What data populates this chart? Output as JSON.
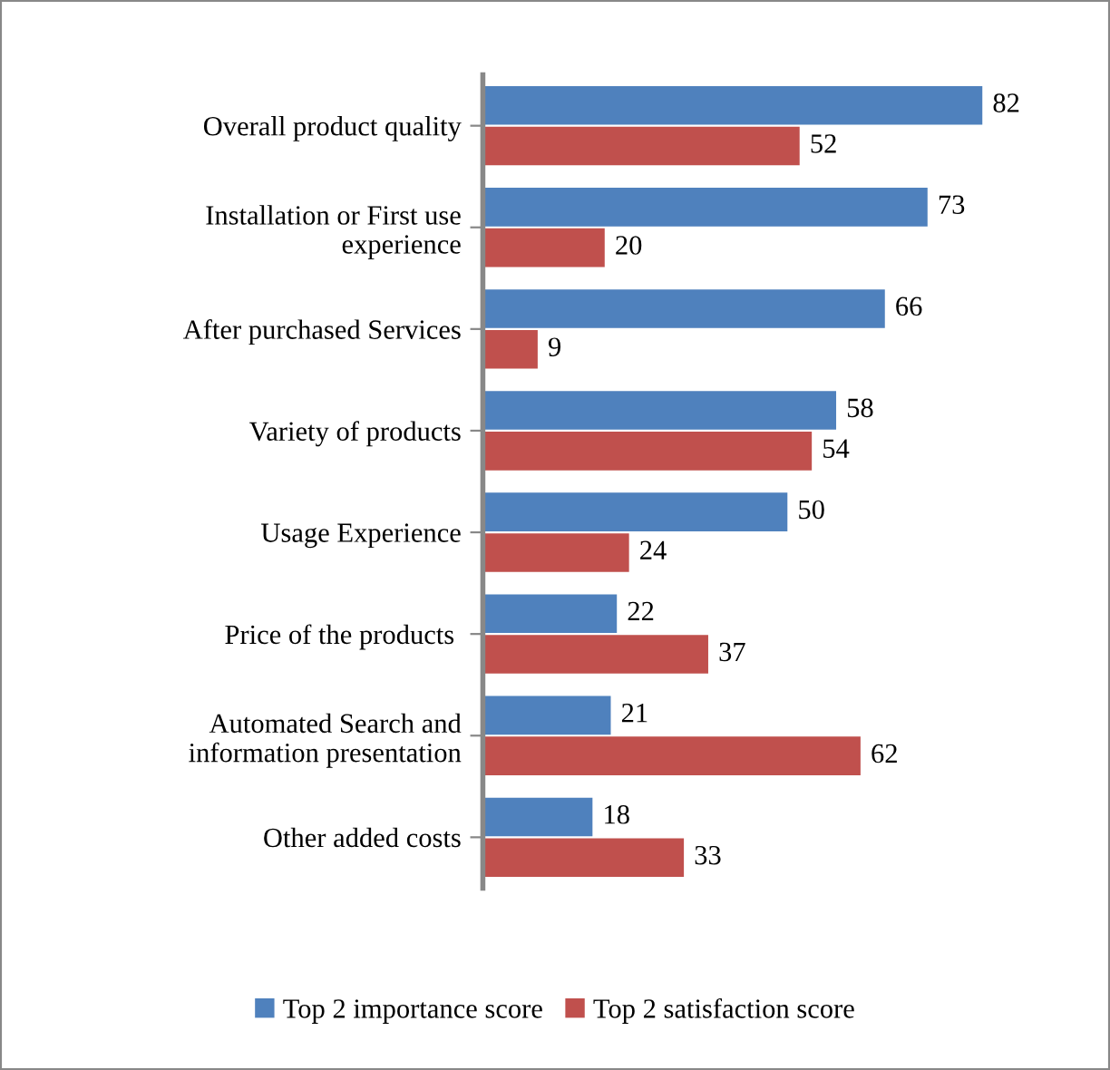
{
  "chart_data": {
    "type": "bar",
    "orientation": "horizontal",
    "categories": [
      "Overall product quality",
      "Installation or First use\nexperience",
      "After purchased Services",
      "Variety of products",
      "Usage Experience",
      "Price of the products ",
      "Automated Search and\ninformation presentation",
      "Other added costs"
    ],
    "series": [
      {
        "name": "Top 2 importance score",
        "color": "#4f81bd",
        "values": [
          82,
          73,
          66,
          58,
          50,
          22,
          21,
          18
        ]
      },
      {
        "name": "Top 2 satisfaction score",
        "color": "#c0504d",
        "values": [
          52,
          20,
          9,
          54,
          24,
          37,
          62,
          33
        ]
      }
    ],
    "data_labels": true,
    "legend": "bottom",
    "grid": false
  }
}
